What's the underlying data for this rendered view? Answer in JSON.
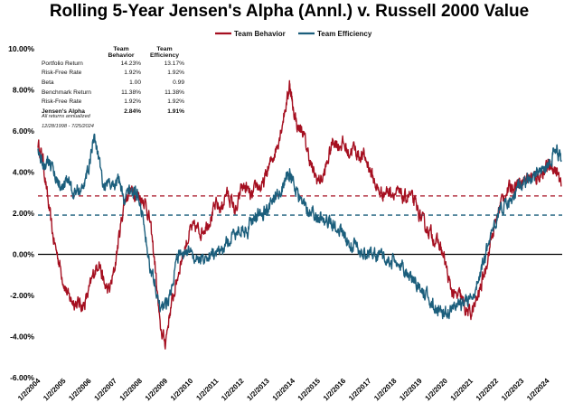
{
  "chart_data": {
    "type": "line",
    "title": "Rolling 5-Year Jensen's Alpha (Annl.) v. Russell 2000 Value",
    "ylim": [
      -6,
      10
    ],
    "y_ticks": [
      "-6.00%",
      "-4.00%",
      "-2.00%",
      "0.00%",
      "2.00%",
      "4.00%",
      "6.00%",
      "8.00%",
      "10.00%"
    ],
    "x_ticks": [
      "1/2/2004",
      "1/2/2005",
      "1/2/2006",
      "1/2/2007",
      "1/2/2008",
      "1/2/2009",
      "1/2/2010",
      "1/2/2011",
      "1/2/2012",
      "1/2/2013",
      "1/2/2014",
      "1/2/2015",
      "1/2/2016",
      "1/2/2017",
      "1/2/2018",
      "1/2/2019",
      "1/2/2020",
      "1/2/2021",
      "1/2/2022",
      "1/2/2023",
      "1/2/2024"
    ],
    "grid": false,
    "legend_position": "top-right",
    "series": [
      {
        "name": "Team Behavior",
        "color": "#a50f20",
        "points": [
          [
            2004.0,
            5.4
          ],
          [
            2004.2,
            4.6
          ],
          [
            2004.4,
            2.5
          ],
          [
            2004.6,
            0.8
          ],
          [
            2004.8,
            -0.2
          ],
          [
            2005.0,
            -1.3
          ],
          [
            2005.2,
            -2.1
          ],
          [
            2005.4,
            -2.3
          ],
          [
            2005.6,
            -2.4
          ],
          [
            2005.8,
            -2.5
          ],
          [
            2006.0,
            -1.8
          ],
          [
            2006.2,
            -0.9
          ],
          [
            2006.4,
            -0.3
          ],
          [
            2006.6,
            -1.5
          ],
          [
            2006.8,
            -1.8
          ],
          [
            2007.0,
            -0.8
          ],
          [
            2007.2,
            1.0
          ],
          [
            2007.4,
            2.6
          ],
          [
            2007.6,
            3.1
          ],
          [
            2007.8,
            3.0
          ],
          [
            2008.0,
            2.8
          ],
          [
            2008.2,
            2.6
          ],
          [
            2008.4,
            1.6
          ],
          [
            2008.6,
            -0.5
          ],
          [
            2008.8,
            -3.6
          ],
          [
            2009.0,
            -4.3
          ],
          [
            2009.2,
            -2.7
          ],
          [
            2009.4,
            -1.6
          ],
          [
            2009.6,
            -0.4
          ],
          [
            2009.8,
            0.4
          ],
          [
            2010.0,
            1.2
          ],
          [
            2010.2,
            1.3
          ],
          [
            2010.4,
            1.1
          ],
          [
            2010.6,
            1.4
          ],
          [
            2010.8,
            1.8
          ],
          [
            2011.0,
            2.4
          ],
          [
            2011.2,
            2.2
          ],
          [
            2011.4,
            3.0
          ],
          [
            2011.6,
            2.6
          ],
          [
            2011.8,
            2.0
          ],
          [
            2012.0,
            3.3
          ],
          [
            2012.2,
            3.2
          ],
          [
            2012.4,
            2.7
          ],
          [
            2012.6,
            3.4
          ],
          [
            2012.8,
            3.2
          ],
          [
            2013.0,
            4.0
          ],
          [
            2013.2,
            4.6
          ],
          [
            2013.4,
            5.3
          ],
          [
            2013.6,
            6.4
          ],
          [
            2013.8,
            7.6
          ],
          [
            2013.9,
            8.3
          ],
          [
            2014.0,
            7.3
          ],
          [
            2014.2,
            6.2
          ],
          [
            2014.4,
            6.0
          ],
          [
            2014.6,
            5.0
          ],
          [
            2014.8,
            4.0
          ],
          [
            2015.0,
            3.6
          ],
          [
            2015.2,
            3.7
          ],
          [
            2015.4,
            4.6
          ],
          [
            2015.6,
            5.6
          ],
          [
            2015.8,
            5.3
          ],
          [
            2016.0,
            5.4
          ],
          [
            2016.2,
            4.9
          ],
          [
            2016.4,
            5.2
          ],
          [
            2016.6,
            4.8
          ],
          [
            2016.8,
            4.8
          ],
          [
            2017.0,
            4.3
          ],
          [
            2017.2,
            3.6
          ],
          [
            2017.4,
            3.0
          ],
          [
            2017.6,
            3.0
          ],
          [
            2017.8,
            3.1
          ],
          [
            2018.0,
            3.0
          ],
          [
            2018.2,
            2.9
          ],
          [
            2018.4,
            2.7
          ],
          [
            2018.6,
            2.9
          ],
          [
            2018.8,
            2.5
          ],
          [
            2019.0,
            1.9
          ],
          [
            2019.2,
            1.4
          ],
          [
            2019.4,
            1.1
          ],
          [
            2019.6,
            0.7
          ],
          [
            2019.8,
            0.4
          ],
          [
            2020.0,
            -0.4
          ],
          [
            2020.2,
            -1.6
          ],
          [
            2020.4,
            -2.1
          ],
          [
            2020.6,
            -2.0
          ],
          [
            2020.8,
            -2.7
          ],
          [
            2021.0,
            -2.9
          ],
          [
            2021.2,
            -2.4
          ],
          [
            2021.4,
            -1.6
          ],
          [
            2021.6,
            -0.6
          ],
          [
            2021.8,
            0.7
          ],
          [
            2022.0,
            1.6
          ],
          [
            2022.2,
            2.6
          ],
          [
            2022.4,
            3.0
          ],
          [
            2022.6,
            3.3
          ],
          [
            2022.8,
            3.4
          ],
          [
            2023.0,
            3.6
          ],
          [
            2023.2,
            3.7
          ],
          [
            2023.4,
            3.8
          ],
          [
            2023.6,
            3.7
          ],
          [
            2023.8,
            4.0
          ],
          [
            2024.0,
            4.2
          ],
          [
            2024.2,
            4.3
          ],
          [
            2024.4,
            4.0
          ],
          [
            2024.56,
            3.3
          ]
        ]
      },
      {
        "name": "Team Efficiency",
        "color": "#1b5e7c",
        "points": [
          [
            2004.0,
            5.0
          ],
          [
            2004.2,
            4.4
          ],
          [
            2004.4,
            4.7
          ],
          [
            2004.6,
            4.1
          ],
          [
            2004.8,
            3.5
          ],
          [
            2005.0,
            3.1
          ],
          [
            2005.2,
            3.7
          ],
          [
            2005.4,
            2.9
          ],
          [
            2005.6,
            3.2
          ],
          [
            2005.8,
            3.3
          ],
          [
            2006.0,
            4.2
          ],
          [
            2006.2,
            5.8
          ],
          [
            2006.4,
            4.7
          ],
          [
            2006.6,
            3.2
          ],
          [
            2006.8,
            3.4
          ],
          [
            2007.0,
            3.4
          ],
          [
            2007.2,
            3.7
          ],
          [
            2007.4,
            2.6
          ],
          [
            2007.6,
            3.1
          ],
          [
            2007.8,
            3.0
          ],
          [
            2008.0,
            2.7
          ],
          [
            2008.2,
            1.2
          ],
          [
            2008.4,
            -0.6
          ],
          [
            2008.6,
            -1.3
          ],
          [
            2008.8,
            -2.7
          ],
          [
            2009.0,
            -2.5
          ],
          [
            2009.2,
            -1.8
          ],
          [
            2009.4,
            -0.6
          ],
          [
            2009.6,
            0.1
          ],
          [
            2009.8,
            -0.2
          ],
          [
            2010.0,
            0.2
          ],
          [
            2010.2,
            -0.3
          ],
          [
            2010.4,
            -0.2
          ],
          [
            2010.6,
            -0.1
          ],
          [
            2010.8,
            0.0
          ],
          [
            2011.0,
            0.1
          ],
          [
            2011.2,
            0.1
          ],
          [
            2011.4,
            0.6
          ],
          [
            2011.6,
            0.7
          ],
          [
            2011.8,
            1.1
          ],
          [
            2012.0,
            1.3
          ],
          [
            2012.2,
            1.0
          ],
          [
            2012.4,
            1.7
          ],
          [
            2012.6,
            1.9
          ],
          [
            2012.8,
            2.0
          ],
          [
            2013.0,
            2.2
          ],
          [
            2013.2,
            2.6
          ],
          [
            2013.4,
            2.8
          ],
          [
            2013.6,
            3.3
          ],
          [
            2013.8,
            3.8
          ],
          [
            2013.9,
            3.9
          ],
          [
            2014.0,
            3.6
          ],
          [
            2014.2,
            3.0
          ],
          [
            2014.4,
            2.4
          ],
          [
            2014.6,
            2.2
          ],
          [
            2014.8,
            2.1
          ],
          [
            2015.0,
            1.8
          ],
          [
            2015.2,
            1.6
          ],
          [
            2015.4,
            1.6
          ],
          [
            2015.6,
            1.5
          ],
          [
            2015.8,
            1.2
          ],
          [
            2016.0,
            1.0
          ],
          [
            2016.2,
            0.6
          ],
          [
            2016.4,
            0.4
          ],
          [
            2016.6,
            0.2
          ],
          [
            2016.8,
            0.1
          ],
          [
            2017.0,
            0.0
          ],
          [
            2017.2,
            0.0
          ],
          [
            2017.4,
            -0.1
          ],
          [
            2017.6,
            -0.2
          ],
          [
            2017.8,
            -0.3
          ],
          [
            2018.0,
            -0.4
          ],
          [
            2018.2,
            -0.5
          ],
          [
            2018.4,
            -0.8
          ],
          [
            2018.6,
            -1.0
          ],
          [
            2018.8,
            -1.3
          ],
          [
            2019.0,
            -1.6
          ],
          [
            2019.2,
            -1.9
          ],
          [
            2019.4,
            -2.2
          ],
          [
            2019.6,
            -2.6
          ],
          [
            2019.8,
            -2.8
          ],
          [
            2020.0,
            -2.9
          ],
          [
            2020.2,
            -2.7
          ],
          [
            2020.4,
            -2.6
          ],
          [
            2020.6,
            -2.5
          ],
          [
            2020.8,
            -2.4
          ],
          [
            2021.0,
            -2.1
          ],
          [
            2021.2,
            -1.6
          ],
          [
            2021.4,
            -0.9
          ],
          [
            2021.6,
            0.1
          ],
          [
            2021.8,
            0.9
          ],
          [
            2022.0,
            1.6
          ],
          [
            2022.2,
            2.2
          ],
          [
            2022.4,
            2.4
          ],
          [
            2022.6,
            2.7
          ],
          [
            2022.8,
            3.0
          ],
          [
            2023.0,
            3.3
          ],
          [
            2023.2,
            3.6
          ],
          [
            2023.4,
            3.7
          ],
          [
            2023.6,
            3.9
          ],
          [
            2023.8,
            4.1
          ],
          [
            2024.0,
            4.3
          ],
          [
            2024.2,
            4.8
          ],
          [
            2024.35,
            5.2
          ],
          [
            2024.45,
            4.9
          ],
          [
            2024.56,
            4.5
          ]
        ]
      }
    ],
    "reference_lines": [
      {
        "value": 2.84,
        "color": "#a50f20",
        "style": "dashed"
      },
      {
        "value": 1.91,
        "color": "#1b5e7c",
        "style": "dashed"
      },
      {
        "value": 0.0,
        "color": "#000000",
        "style": "solid"
      }
    ]
  },
  "stats": {
    "headers": [
      "",
      "Team Behavior",
      "Team Efficiency"
    ],
    "rows": [
      {
        "label": "Portfolio Return",
        "behavior": "14.23%",
        "efficiency": "13.17%",
        "bold": false
      },
      {
        "label": "Risk-Free Rate",
        "behavior": "1.92%",
        "efficiency": "1.92%",
        "bold": false
      },
      {
        "label": "Beta",
        "behavior": "1.00",
        "efficiency": "0.99",
        "bold": false
      },
      {
        "label": "Benchmark Return",
        "behavior": "11.38%",
        "efficiency": "11.38%",
        "bold": false
      },
      {
        "label": "Risk-Free Rate",
        "behavior": "1.92%",
        "efficiency": "1.92%",
        "bold": false
      },
      {
        "label": "Jensen's Alpha",
        "behavior": "2.84%",
        "efficiency": "1.91%",
        "bold": true
      }
    ],
    "note1": "All returns annualized",
    "note2": "12/28/1998 - 7/25/2024"
  }
}
